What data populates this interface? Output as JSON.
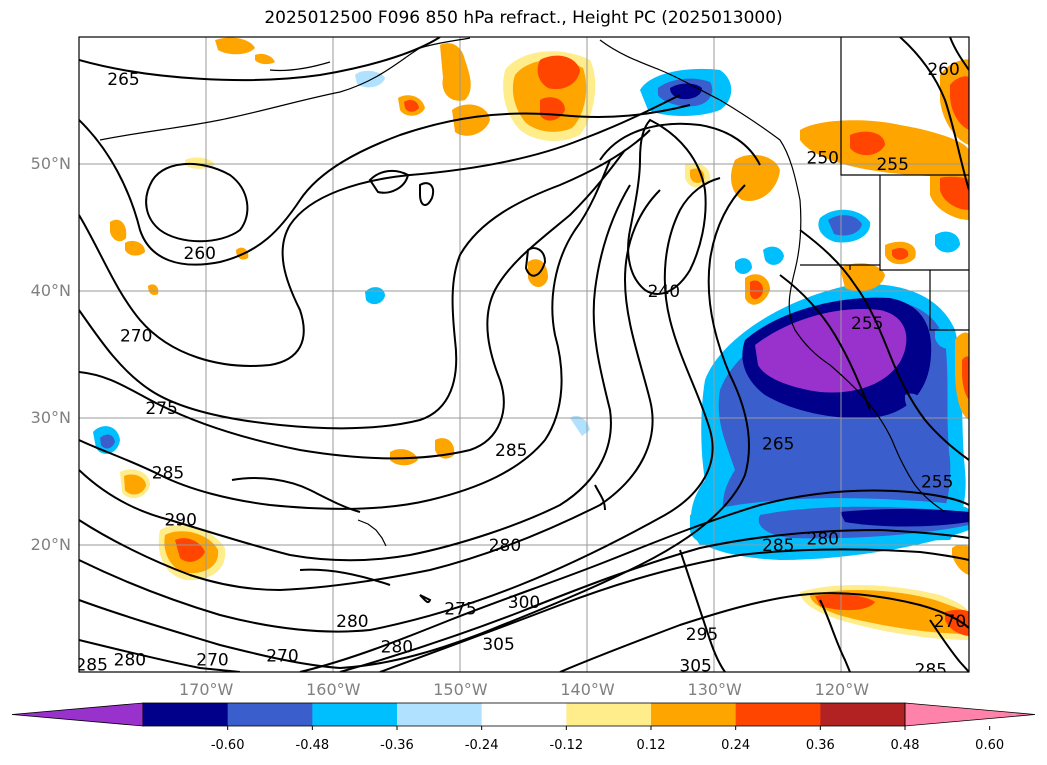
{
  "title": "2025012500 F096 850 hPa refract., Height PC (2025013000)",
  "latitude_labels": [
    {
      "text": "50°N",
      "lat": 50
    },
    {
      "text": "40°N",
      "lat": 40
    },
    {
      "text": "30°N",
      "lat": 30
    },
    {
      "text": "20°N",
      "lat": 20
    }
  ],
  "longitude_labels": [
    {
      "text": "170°W",
      "lon": -170
    },
    {
      "text": "160°W",
      "lon": -160
    },
    {
      "text": "150°W",
      "lon": -150
    },
    {
      "text": "140°W",
      "lon": -140
    },
    {
      "text": "130°W",
      "lon": -130
    },
    {
      "text": "120°W",
      "lon": -120
    }
  ],
  "map_extent": {
    "lon_min": -180,
    "lon_max": -110,
    "lat_min": 10,
    "lat_max": 60
  },
  "colorbar": {
    "ticks": [
      "-0.60",
      "-0.48",
      "-0.36",
      "-0.24",
      "-0.12",
      "0.12",
      "0.24",
      "0.36",
      "0.48",
      "0.60"
    ],
    "colors": [
      "#9932CC",
      "#00008B",
      "#3A5FCD",
      "#00BFFF",
      "#B0E2FF",
      "#FFFFFF",
      "#FFEC8B",
      "#FFA500",
      "#FF4500",
      "#B22222",
      "#FF82AB"
    ]
  },
  "contour_labels": [
    {
      "text": "265",
      "lon": -176.5,
      "lat": 56.7
    },
    {
      "text": "260",
      "lon": -170.5,
      "lat": 43.0
    },
    {
      "text": "270",
      "lon": -175.5,
      "lat": 36.5
    },
    {
      "text": "275",
      "lon": -173.5,
      "lat": 30.8
    },
    {
      "text": "285",
      "lon": -173.0,
      "lat": 25.7
    },
    {
      "text": "290",
      "lon": -172.0,
      "lat": 22.0
    },
    {
      "text": "285",
      "lon": -179.0,
      "lat": 10.6
    },
    {
      "text": "280",
      "lon": -176.0,
      "lat": 11.0
    },
    {
      "text": "270",
      "lon": -169.5,
      "lat": 11.0
    },
    {
      "text": "270",
      "lon": -164.0,
      "lat": 11.3
    },
    {
      "text": "280",
      "lon": -158.5,
      "lat": 14.0
    },
    {
      "text": "280",
      "lon": -155.0,
      "lat": 12.0
    },
    {
      "text": "275",
      "lon": -150.0,
      "lat": 15.0
    },
    {
      "text": "300",
      "lon": -145.0,
      "lat": 15.5
    },
    {
      "text": "305",
      "lon": -147.0,
      "lat": 12.2
    },
    {
      "text": "285",
      "lon": -146.0,
      "lat": 27.5
    },
    {
      "text": "280",
      "lon": -146.5,
      "lat": 20.0
    },
    {
      "text": "240",
      "lon": -134.0,
      "lat": 40.0
    },
    {
      "text": "250",
      "lon": -121.5,
      "lat": 50.5
    },
    {
      "text": "255",
      "lon": -118.0,
      "lat": 37.5
    },
    {
      "text": "255",
      "lon": -116.0,
      "lat": 50.0
    },
    {
      "text": "260",
      "lon": -112.0,
      "lat": 57.5
    },
    {
      "text": "265",
      "lon": -125.0,
      "lat": 28.0
    },
    {
      "text": "285",
      "lon": -125.0,
      "lat": 20.0
    },
    {
      "text": "280",
      "lon": -121.5,
      "lat": 20.5
    },
    {
      "text": "295",
      "lon": -131.0,
      "lat": 13.0
    },
    {
      "text": "305",
      "lon": -131.5,
      "lat": 10.5
    },
    {
      "text": "270",
      "lon": -111.5,
      "lat": 14.0
    },
    {
      "text": "285",
      "lon": -113.0,
      "lat": 10.2
    },
    {
      "text": "255",
      "lon": -112.5,
      "lat": 25.0
    }
  ]
}
